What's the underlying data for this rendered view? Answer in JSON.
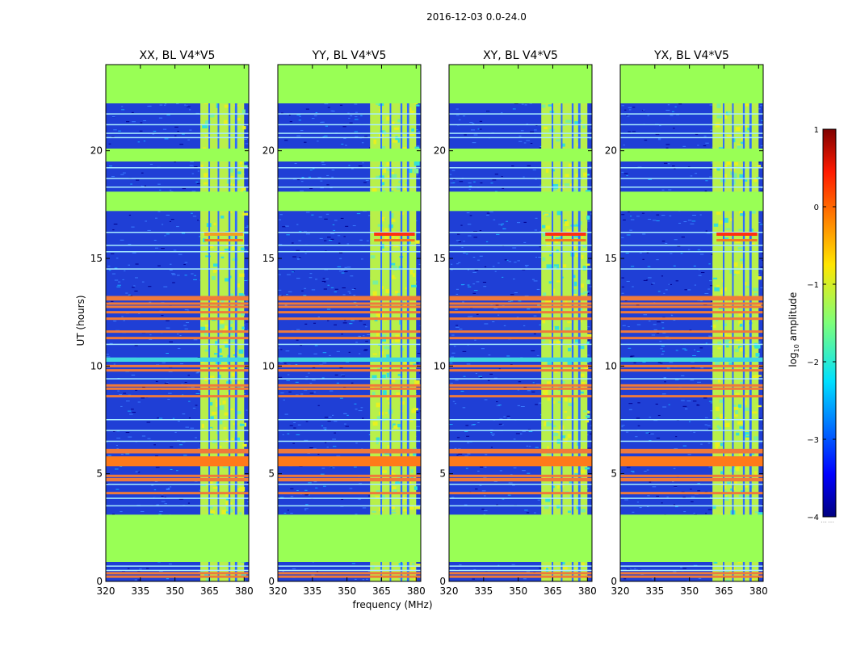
{
  "figure": {
    "suptitle": "2016-12-03 0.0-24.0",
    "xlabel": "frequency (MHz)",
    "ylabel": "UT (hours)",
    "colorbar": {
      "label": "log",
      "label_sub": "10",
      "label_rest": " amplitude",
      "ticks": [
        "1",
        "0",
        "−1",
        "−2",
        "−3",
        "−4"
      ],
      "range": [
        -4,
        1
      ]
    }
  },
  "chart_data": [
    {
      "type": "heatmap",
      "title": "XX, BL V4*V5",
      "xlabel": "frequency (MHz)",
      "ylabel": "UT (hours)",
      "xlim": [
        320,
        382
      ],
      "ylim": [
        0,
        24
      ],
      "xticks": [
        "320",
        "335",
        "350",
        "365",
        "380"
      ],
      "yticks": [
        "0",
        "5",
        "10",
        "15",
        "20"
      ],
      "band_start_mhz": 361
    },
    {
      "type": "heatmap",
      "title": "YY, BL V4*V5",
      "xlabel": "",
      "ylabel": "",
      "xlim": [
        320,
        382
      ],
      "ylim": [
        0,
        24
      ],
      "xticks": [
        "320",
        "335",
        "350",
        "365",
        "380"
      ],
      "yticks": [
        "0",
        "5",
        "10",
        "15",
        "20"
      ],
      "band_start_mhz": 360
    },
    {
      "type": "heatmap",
      "title": "XY, BL V4*V5",
      "xlabel": "",
      "ylabel": "",
      "xlim": [
        320,
        382
      ],
      "ylim": [
        0,
        24
      ],
      "xticks": [
        "320",
        "335",
        "350",
        "365",
        "380"
      ],
      "yticks": [
        "0",
        "5",
        "10",
        "15",
        "20"
      ],
      "band_start_mhz": 360
    },
    {
      "type": "heatmap",
      "title": "YX, BL V4*V5",
      "xlabel": "",
      "ylabel": "",
      "xlim": [
        320,
        382
      ],
      "ylim": [
        0,
        24
      ],
      "xticks": [
        "320",
        "335",
        "350",
        "365",
        "380"
      ],
      "yticks": [
        "0",
        "5",
        "10",
        "15",
        "20"
      ],
      "band_start_mhz": 360
    }
  ],
  "structure": {
    "flagged_hours": [
      [
        0.9,
        3.1
      ],
      [
        17.2,
        18.1
      ],
      [
        19.5,
        20.1
      ],
      [
        22.2,
        24.0
      ]
    ],
    "cyan_hours": [
      [
        10.2,
        10.4
      ]
    ],
    "rfi_band_mhz": [
      361,
      380
    ],
    "rfi_gap_mhz": [
      [
        364.5,
        365.0
      ],
      [
        368.5,
        369.2
      ],
      [
        373.2,
        374.0
      ],
      [
        376.0,
        377.0
      ]
    ],
    "orange_hours": [
      0.22,
      0.38,
      4.1,
      4.7,
      4.75,
      4.9,
      5.45,
      5.55,
      5.65,
      5.75,
      6.0,
      6.1,
      8.6,
      8.95,
      9.1,
      9.8,
      10.0,
      11.3,
      11.6,
      12.2,
      12.5,
      12.75,
      12.9,
      13.1,
      13.2
    ],
    "light_lines_hours": [
      0.5,
      0.7,
      3.5,
      3.85,
      4.5,
      6.5,
      7.0,
      7.5,
      9.4,
      11.0,
      14.5,
      15.3,
      15.6,
      16.2,
      18.3,
      18.7,
      19.2,
      20.6,
      20.8,
      21.2,
      21.7
    ]
  }
}
